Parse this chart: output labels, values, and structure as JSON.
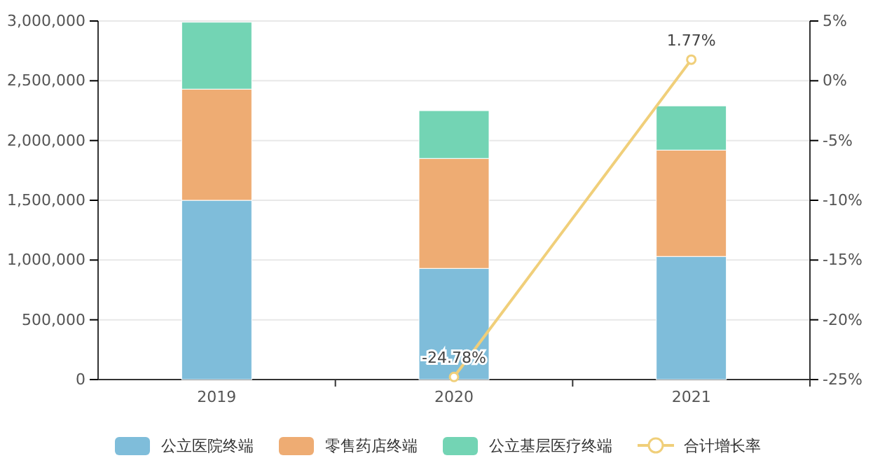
{
  "chart_data": {
    "type": "bar",
    "stacked": true,
    "categories": [
      "2019",
      "2020",
      "2021"
    ],
    "series": [
      {
        "name": "公立医院终端",
        "color": "#7fbdda",
        "values": [
          1500000,
          930000,
          1030000
        ]
      },
      {
        "name": "零售药店终端",
        "color": "#eeac73",
        "values": [
          930000,
          920000,
          890000
        ]
      },
      {
        "name": "公立基层医疗终端",
        "color": "#73d4b4",
        "values": [
          560000,
          400000,
          370000
        ]
      },
      {
        "name": "合计增长率",
        "type": "line",
        "axis": "y2",
        "color": "#f0cf7a",
        "values": [
          null,
          -24.78,
          1.77
        ],
        "value_labels": [
          null,
          "-24.78%",
          "1.77%"
        ],
        "marker": "circle"
      }
    ],
    "ylim": [
      0,
      3000000
    ],
    "yticks": [
      {
        "value": 0,
        "label": "0"
      },
      {
        "value": 500000,
        "label": "500,000"
      },
      {
        "value": 1000000,
        "label": "1,000,000"
      },
      {
        "value": 1500000,
        "label": "1,500,000"
      },
      {
        "value": 2000000,
        "label": "2,000,000"
      },
      {
        "value": 2500000,
        "label": "2,500,000"
      },
      {
        "value": 3000000,
        "label": "3,000,000"
      }
    ],
    "y2lim": [
      -25,
      5
    ],
    "y2ticks": [
      {
        "value": -25,
        "label": "-25%"
      },
      {
        "value": -20,
        "label": "-20%"
      },
      {
        "value": -15,
        "label": "-15%"
      },
      {
        "value": -10,
        "label": "-10%"
      },
      {
        "value": -5,
        "label": "-5%"
      },
      {
        "value": 0,
        "label": "0%"
      },
      {
        "value": 5,
        "label": "5%"
      }
    ],
    "grid": "y",
    "legend": "bottom"
  }
}
